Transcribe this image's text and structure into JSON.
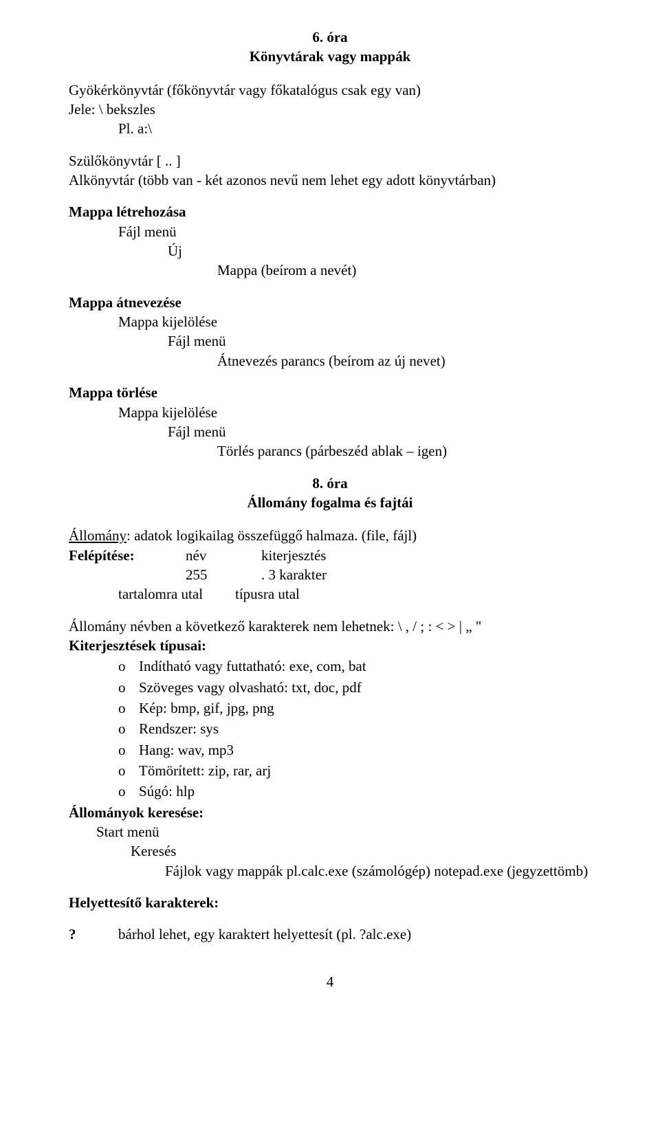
{
  "lesson6": {
    "number": "6. óra",
    "title": "Könyvtárak vagy mappák",
    "gyoker": "Gyökérkönyvtár (főkönyvtár vagy főkatalógus csak egy van)",
    "jele": "Jele:  \\   bekszles",
    "pl": "Pl.  a:\\",
    "szulo": "Szülőkönyvtár   [ .. ]",
    "alkonyvtar": "Alkönyvtár (több van - két azonos nevű nem lehet egy adott könyvtárban)",
    "mappa_letre_heading": "Mappa létrehozása",
    "mappa_letre_l1": "Fájl menü",
    "mappa_letre_l2": "Új",
    "mappa_letre_l3": "Mappa (beírom a nevét)",
    "mappa_atnev_heading": "Mappa átnevezése",
    "mappa_atnev_l1": "Mappa kijelölése",
    "mappa_atnev_l2": "Fájl menü",
    "mappa_atnev_l3": "Átnevezés parancs (beírom az új nevet)",
    "mappa_torles_heading": "Mappa törlése",
    "mappa_torles_l1": "Mappa kijelölése",
    "mappa_torles_l2": "Fájl menü",
    "mappa_torles_l3": "Törlés parancs (párbeszéd ablak – igen)"
  },
  "lesson8": {
    "number": "8. óra",
    "title": "Állomány fogalma és fajtái",
    "allomany_label": "Állomány",
    "allomany_text": ": adatok logikailag összefüggő halmaza. (file, fájl)",
    "felep_label": "Felépítése:",
    "felep_r1c1": "név",
    "felep_r1c2": "kiterjesztés",
    "felep_r2c1": "255",
    "felep_r2c2": ".    3 karakter",
    "felep_r3c1": "tartalomra utal",
    "felep_r3c2": "típusra utal",
    "nev_rule": "Állomány névben a következő karakterek nem lehetnek:   \\  ,  /  ;  :  <  >  |  „  \"",
    "kiterj_heading": "Kiterjesztések típusai:",
    "kiterj_items": [
      "Indítható vagy futtatható:  exe, com, bat",
      "Szöveges vagy olvasható: txt, doc, pdf",
      "Kép:  bmp, gif, jpg, png",
      "Rendszer:  sys",
      "Hang: wav, mp3",
      "Tömörített: zip, rar, arj",
      "Súgó: hlp"
    ],
    "kereses_heading": "Állományok keresése:",
    "kereses_l1": "Start menü",
    "kereses_l2": "Keresés",
    "kereses_l3": "Fájlok vagy mappák  pl.calc.exe (számológép) notepad.exe (jegyzettömb)",
    "helyettes_heading": "Helyettesítő karakterek:",
    "q_mark": "?",
    "q_text": "bárhol lehet, egy karaktert helyettesít (pl. ?alc.exe)"
  },
  "page_number": "4"
}
